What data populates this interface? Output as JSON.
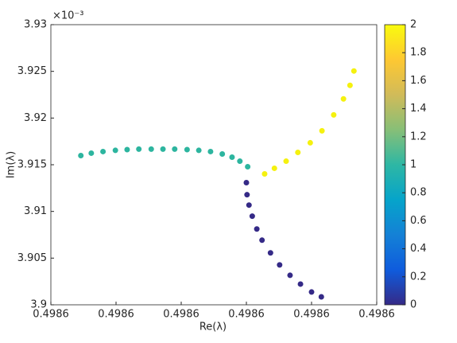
{
  "chart_data": {
    "type": "scatter",
    "xlabel": "Re(λ)",
    "ylabel": "Im(λ)",
    "y_multiplier": "×10⁻³",
    "xlim": [
      0.49858,
      0.49863
    ],
    "xticks": [
      {
        "value": 0.49858,
        "label": "0.4986"
      },
      {
        "value": 0.49859,
        "label": "0.4986"
      },
      {
        "value": 0.4986,
        "label": "0.4986"
      },
      {
        "value": 0.49861,
        "label": "0.4986"
      },
      {
        "value": 0.49862,
        "label": "0.4986"
      },
      {
        "value": 0.49863,
        "label": "0.4986"
      }
    ],
    "ylim": [
      3.9,
      3.93
    ],
    "yticks": [
      3.9,
      3.905,
      3.91,
      3.915,
      3.92,
      3.925,
      3.93
    ],
    "series": [
      {
        "color": "#352a87",
        "x": [
          0.49861,
          0.4986101,
          0.4986104,
          0.4986109,
          0.4986116,
          0.4986124,
          0.4986137,
          0.4986151,
          0.4986167,
          0.4986183,
          0.49862,
          0.4986215
        ],
        "values": [
          3.91308,
          3.91179,
          3.91068,
          3.90949,
          3.90812,
          3.90692,
          3.90556,
          3.90427,
          3.90316,
          3.90222,
          3.90137,
          3.90085
        ]
      },
      {
        "color": "#2db59f",
        "x": [
          0.4985846,
          0.4985862,
          0.498588,
          0.4985899,
          0.4985917,
          0.4985935,
          0.4985954,
          0.4985972,
          0.498599,
          0.4986009,
          0.4986027,
          0.4986045,
          0.4986063,
          0.4986078,
          0.498609,
          0.4986102
        ],
        "values": [
          3.91598,
          3.91624,
          3.91641,
          3.91654,
          3.91662,
          3.91667,
          3.91667,
          3.91667,
          3.91667,
          3.91662,
          3.91654,
          3.91641,
          3.91615,
          3.91581,
          3.91538,
          3.91479
        ]
      },
      {
        "color": "#f5f10f",
        "x": [
          0.4986128,
          0.4986143,
          0.4986161,
          0.4986179,
          0.4986198,
          0.4986216,
          0.4986234,
          0.4986249,
          0.4986259,
          0.4986265
        ],
        "values": [
          3.91402,
          3.91462,
          3.91538,
          3.91632,
          3.91735,
          3.91863,
          3.92034,
          3.92205,
          3.9235,
          3.92504
        ]
      }
    ],
    "colorbar": {
      "lim": [
        0,
        2
      ],
      "ticks": [
        0,
        0.2,
        0.4,
        0.6,
        0.8,
        1,
        1.2,
        1.4,
        1.6,
        1.8,
        2
      ],
      "colormap": [
        "#352a87",
        "#0f5cdd",
        "#1481d6",
        "#06a4ca",
        "#2eb7a4",
        "#87bf77",
        "#d1bb59",
        "#fec832",
        "#f9fb0e"
      ]
    }
  }
}
